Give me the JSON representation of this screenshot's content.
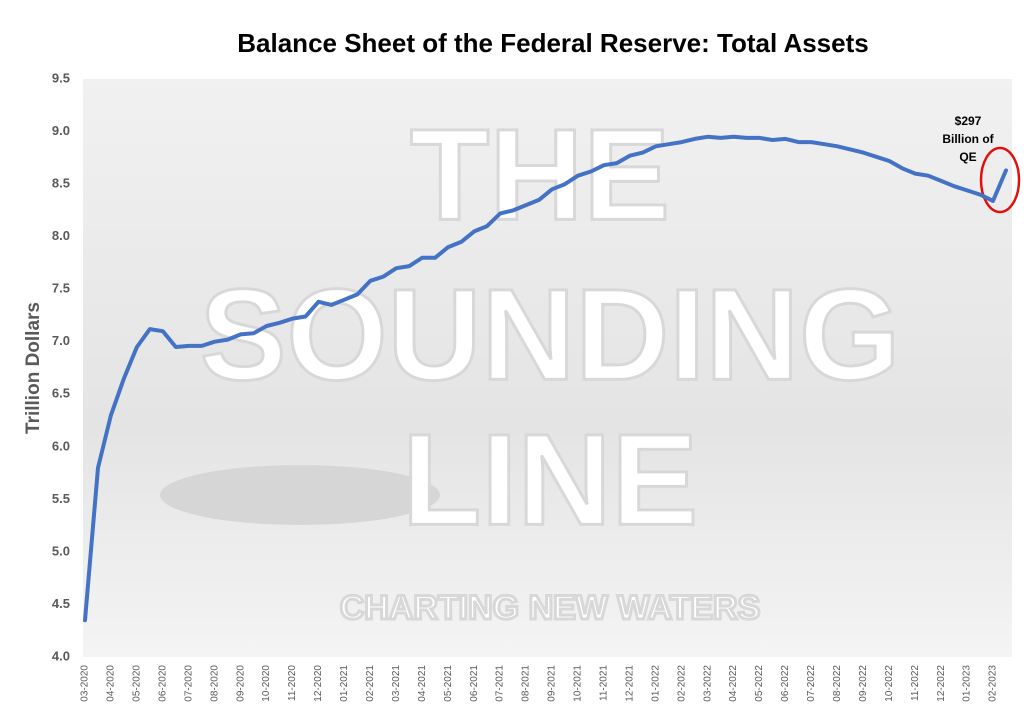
{
  "chart_data": {
    "type": "line",
    "title": "Balance Sheet of the Federal Reserve: Total Assets",
    "y_label": "Trillion Dollars",
    "annotation_lines": [
      "$297",
      "Billion of",
      "QE"
    ],
    "watermark": [
      "THE",
      "SOUNDING",
      "LINE",
      "CHARTING NEW WATERS"
    ],
    "categories": [
      "03-2020",
      null,
      "04-2020",
      null,
      "05-2020",
      null,
      "06-2020",
      null,
      "07-2020",
      null,
      "08-2020",
      null,
      "09-2020",
      null,
      "10-2020",
      null,
      "11-2020",
      null,
      "12-2020",
      null,
      "01-2021",
      null,
      "02-2021",
      null,
      "03-2021",
      null,
      "04-2021",
      null,
      "05-2021",
      null,
      "06-2021",
      null,
      "07-2021",
      null,
      "08-2021",
      null,
      "09-2021",
      null,
      "10-2021",
      null,
      "11-2021",
      null,
      "12-2021",
      null,
      "01-2022",
      null,
      "02-2022",
      null,
      "03-2022",
      null,
      "04-2022",
      null,
      "05-2022",
      null,
      "06-2022",
      null,
      "07-2022",
      null,
      "08-2022",
      null,
      "09-2022",
      null,
      "10-2022",
      null,
      "11-2022",
      null,
      "12-2022",
      null,
      "01-2023",
      null,
      "02-2023",
      null
    ],
    "series": [
      {
        "name": "Total Assets",
        "color": "#4472c4",
        "values": [
          4.35,
          5.8,
          6.3,
          6.65,
          6.95,
          7.12,
          7.1,
          6.95,
          6.96,
          6.96,
          7.0,
          7.02,
          7.07,
          7.08,
          7.15,
          7.18,
          7.22,
          7.24,
          7.38,
          7.35,
          7.4,
          7.45,
          7.58,
          7.62,
          7.7,
          7.72,
          7.8,
          7.8,
          7.9,
          7.95,
          8.05,
          8.1,
          8.22,
          8.25,
          8.3,
          8.35,
          8.45,
          8.5,
          8.58,
          8.62,
          8.68,
          8.7,
          8.77,
          8.8,
          8.86,
          8.88,
          8.9,
          8.93,
          8.95,
          8.94,
          8.95,
          8.94,
          8.94,
          8.92,
          8.93,
          8.9,
          8.9,
          8.88,
          8.86,
          8.83,
          8.8,
          8.76,
          8.72,
          8.65,
          8.6,
          8.58,
          8.53,
          8.48,
          8.44,
          8.4,
          8.34,
          8.63
        ]
      }
    ],
    "ylim": [
      4.0,
      9.5
    ],
    "yticks": [
      {
        "value": 4,
        "label": "4.0"
      },
      {
        "value": 4.5,
        "label": "4.5"
      },
      {
        "value": 5,
        "label": "5.0"
      },
      {
        "value": 5.5,
        "label": "5.5"
      },
      {
        "value": 6,
        "label": "6.0"
      },
      {
        "value": 6.5,
        "label": "6.5"
      },
      {
        "value": 7,
        "label": "7.0"
      },
      {
        "value": 7.5,
        "label": "7.5"
      },
      {
        "value": 8,
        "label": "8.0"
      },
      {
        "value": 8.5,
        "label": "8.5"
      },
      {
        "value": 9,
        "label": "9.0"
      },
      {
        "value": 9.5,
        "label": "9.5"
      }
    ],
    "grid": false
  }
}
